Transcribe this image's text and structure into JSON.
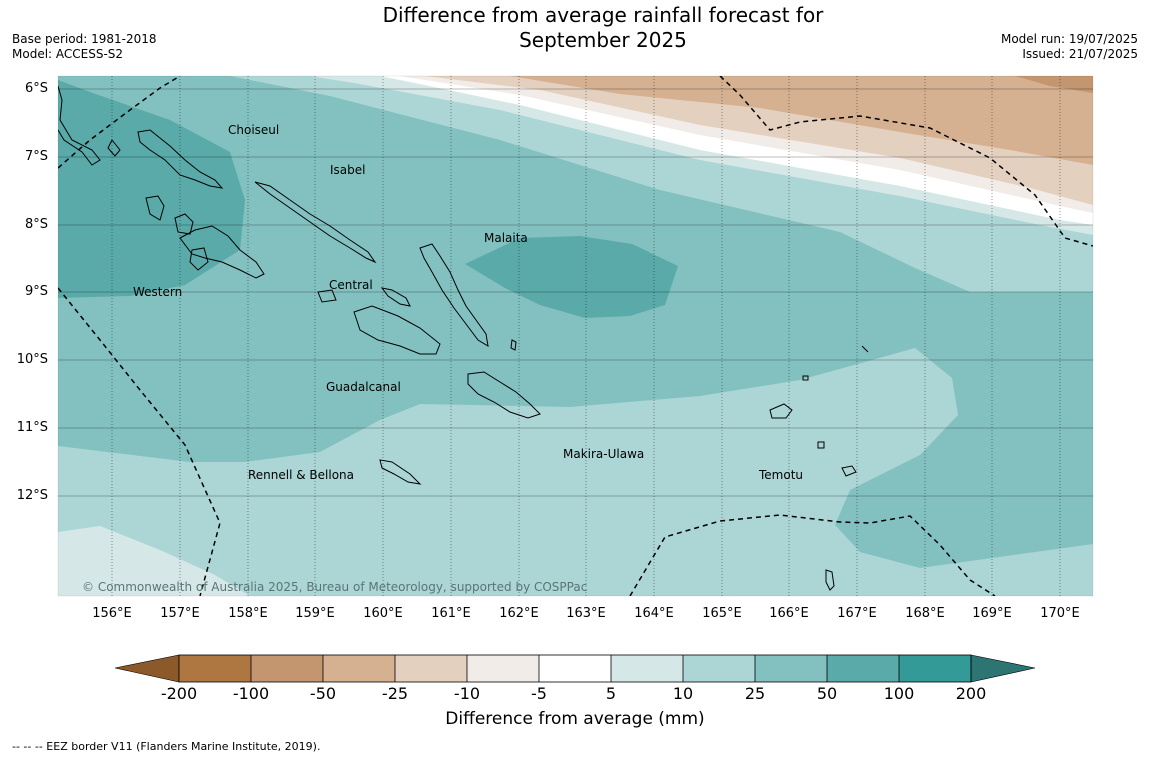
{
  "title_line1": "Difference from average rainfall forecast for",
  "title_line2": "September 2025",
  "base_period": "Base period: 1981-2018",
  "model": "Model: ACCESS-S2",
  "model_run": "Model run: 19/07/2025",
  "issued": "Issued: 21/07/2025",
  "latitude_labels": [
    "6°S",
    "7°S",
    "8°S",
    "9°S",
    "10°S",
    "11°S",
    "12°S"
  ],
  "longitude_labels": [
    "156°E",
    "157°E",
    "158°E",
    "159°E",
    "160°E",
    "161°E",
    "162°E",
    "163°E",
    "164°E",
    "165°E",
    "166°E",
    "167°E",
    "168°E",
    "169°E",
    "170°E"
  ],
  "places": {
    "choiseul": "Choiseul",
    "isabel": "Isabel",
    "malaita": "Malaita",
    "western": "Western",
    "central": "Central",
    "guadalcanal": "Guadalcanal",
    "makira_ulawa": "Makira-Ulawa",
    "temotu": "Temotu",
    "rennell_bellona": "Rennell & Bellona"
  },
  "copyright": "© Commonwealth of Australia 2025, Bureau of Meteorology, supported by COSPPac",
  "colorbar": {
    "title": "Difference from average (mm)",
    "tick_labels": [
      "-200",
      "-100",
      "-50",
      "-25",
      "-10",
      "-5",
      "5",
      "10",
      "25",
      "50",
      "100",
      "200"
    ],
    "colors": {
      "below_-200": "#8c5a2a",
      "-200_to_-100": "#ae7640",
      "-100_to_-50": "#c39670",
      "-50_to_-25": "#d5b191",
      "-25_to_-10": "#e4d0bf",
      "-10_to_-5": "#f1ece7",
      "-5_to_5": "#ffffff",
      "5_to_10": "#d5e8e7",
      "10_to_25": "#acd6d5",
      "25_to_50": "#83c1c0",
      "50_to_100": "#5aaaaa",
      "100_to_200": "#339a98",
      "above_200": "#2d7573"
    }
  },
  "legend_note": "--  --  -- EEZ border V11 (Flanders Marine Institute, 2019)."
}
